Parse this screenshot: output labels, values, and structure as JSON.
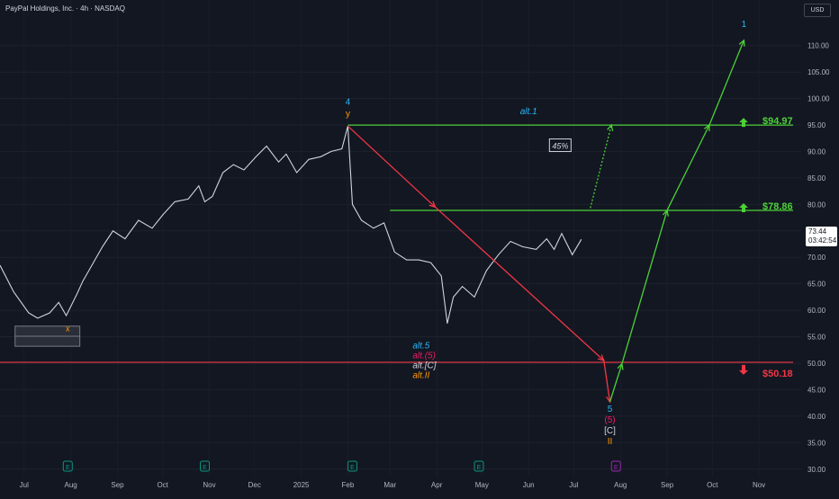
{
  "header": {
    "symbol_title": "PayPal Holdings, Inc. · 4h · NASDAQ",
    "currency": "USD"
  },
  "last_price": {
    "value": "73.44",
    "countdown": "03:42:54"
  },
  "chart_data": {
    "type": "line",
    "title": "",
    "xlabel": "",
    "ylabel": "",
    "ylim": [
      28.6,
      118.6
    ],
    "xlim": [
      "2024-06-15",
      "2025-11-29"
    ],
    "y_ticks": [
      30,
      35,
      40,
      45,
      50,
      55,
      60,
      65,
      70,
      75,
      80,
      85,
      90,
      95,
      100,
      105,
      110
    ],
    "y_tick_labels": [
      "30.00",
      "35.00",
      "40.00",
      "45.00",
      "50.00",
      "55.00",
      "60.00",
      "65.00",
      "70.00",
      "75.00",
      "80.00",
      "85.00",
      "90.00",
      "95.00",
      "100.00",
      "105.00",
      "110.00"
    ],
    "x_ticks": [
      {
        "label": "Jul",
        "date": "2024-07-01"
      },
      {
        "label": "Aug",
        "date": "2024-08-01"
      },
      {
        "label": "Sep",
        "date": "2024-09-01"
      },
      {
        "label": "Oct",
        "date": "2024-10-01"
      },
      {
        "label": "Nov",
        "date": "2024-11-01"
      },
      {
        "label": "Dec",
        "date": "2024-12-01"
      },
      {
        "label": "2025",
        "date": "2025-01-01"
      },
      {
        "label": "Feb",
        "date": "2025-02-01"
      },
      {
        "label": "Mar",
        "date": "2025-03-01"
      },
      {
        "label": "Apr",
        "date": "2025-04-01"
      },
      {
        "label": "May",
        "date": "2025-05-01"
      },
      {
        "label": "Jun",
        "date": "2025-06-01"
      },
      {
        "label": "Jul",
        "date": "2025-07-01"
      },
      {
        "label": "Aug",
        "date": "2025-08-01"
      },
      {
        "label": "Sep",
        "date": "2025-09-01"
      },
      {
        "label": "Oct",
        "date": "2025-10-01"
      },
      {
        "label": "Nov",
        "date": "2025-11-01"
      }
    ],
    "price_series": {
      "x": [
        "2024-06-15",
        "2024-06-24",
        "2024-07-04",
        "2024-07-10",
        "2024-07-18",
        "2024-07-24",
        "2024-07-29",
        "2024-08-05",
        "2024-08-09",
        "2024-08-14",
        "2024-08-22",
        "2024-08-29",
        "2024-09-06",
        "2024-09-15",
        "2024-09-24",
        "2024-10-01",
        "2024-10-09",
        "2024-10-18",
        "2024-10-25",
        "2024-10-29",
        "2024-11-03",
        "2024-11-10",
        "2024-11-17",
        "2024-11-24",
        "2024-12-02",
        "2024-12-09",
        "2024-12-17",
        "2024-12-22",
        "2024-12-29",
        "2025-01-06",
        "2025-01-14",
        "2025-01-21",
        "2025-01-28",
        "2025-02-01",
        "2025-02-04",
        "2025-02-10",
        "2025-02-18",
        "2025-02-25",
        "2025-03-04",
        "2025-03-12",
        "2025-03-20",
        "2025-03-28",
        "2025-04-04",
        "2025-04-08",
        "2025-04-12",
        "2025-04-18",
        "2025-04-26",
        "2025-05-04",
        "2025-05-12",
        "2025-05-20",
        "2025-05-28",
        "2025-06-06",
        "2025-06-13",
        "2025-06-18",
        "2025-06-23",
        "2025-06-30",
        "2025-07-06"
      ],
      "y": [
        68.5,
        63.5,
        59.5,
        58.5,
        59.5,
        61.5,
        59.0,
        63.0,
        65.5,
        68.0,
        72.0,
        75.0,
        73.5,
        77.0,
        75.5,
        78.0,
        80.5,
        81.0,
        83.5,
        80.5,
        81.5,
        86.0,
        87.5,
        86.5,
        89.0,
        91.0,
        88.0,
        89.5,
        86.0,
        88.5,
        89.0,
        90.0,
        90.5,
        94.8,
        80.0,
        77.0,
        75.5,
        76.5,
        71.0,
        69.5,
        69.5,
        69.0,
        66.5,
        57.5,
        62.5,
        64.5,
        62.5,
        67.5,
        70.5,
        73.0,
        72.0,
        71.5,
        73.5,
        71.5,
        74.5,
        70.5,
        73.4
      ]
    },
    "levels": [
      {
        "price": 94.97,
        "label": "$94.97",
        "color": "#4cd137",
        "arrow": "up"
      },
      {
        "price": 78.86,
        "label": "$78.86",
        "color": "#4cd137",
        "arrow": "up"
      },
      {
        "price": 50.18,
        "label": "$50.18",
        "color": "#f23645",
        "arrow": "down"
      }
    ],
    "target_box_pct": "45%",
    "wave_labels": {
      "x_low": "x",
      "top4": "4",
      "top_y": "y",
      "alt1": "alt.1",
      "alt_stack": [
        "alt.5",
        "alt.(5)",
        "alt.[C]",
        "alt.II"
      ],
      "bottom_stack": [
        "5",
        "(5)",
        "[C]",
        "II"
      ],
      "top1": "1"
    },
    "earnings_markers": [
      {
        "date": "2024-07-30",
        "label": "E",
        "color": "#089981"
      },
      {
        "date": "2024-10-29",
        "label": "E",
        "color": "#089981"
      },
      {
        "date": "2025-02-04",
        "label": "E",
        "color": "#089981"
      },
      {
        "date": "2025-04-29",
        "label": "E",
        "color": "#089981"
      },
      {
        "date": "2025-07-29",
        "label": "E",
        "color": "#9c27b0"
      }
    ],
    "projections": {
      "red": [
        [
          "2025-02-01",
          94.8
        ],
        [
          "2025-03-31",
          79.5
        ],
        [
          "2025-07-21",
          50.5
        ],
        [
          "2025-07-25",
          42.7
        ]
      ],
      "green": [
        [
          "2025-07-25",
          42.7
        ],
        [
          "2025-08-02",
          49.9
        ],
        [
          "2025-09-01",
          78.9
        ],
        [
          "2025-09-29",
          95.0
        ],
        [
          "2025-10-22",
          111.0
        ]
      ],
      "green_dotted": [
        [
          "2025-07-12",
          79.3
        ],
        [
          "2025-07-26",
          95.0
        ]
      ]
    },
    "colors": {
      "background": "#131722",
      "price_line": "#d1d4dc",
      "cyan": "#29b6f6",
      "pink": "#e91e63",
      "orange": "#ff9800",
      "red": "#f23645",
      "green": "#4cd137"
    }
  }
}
